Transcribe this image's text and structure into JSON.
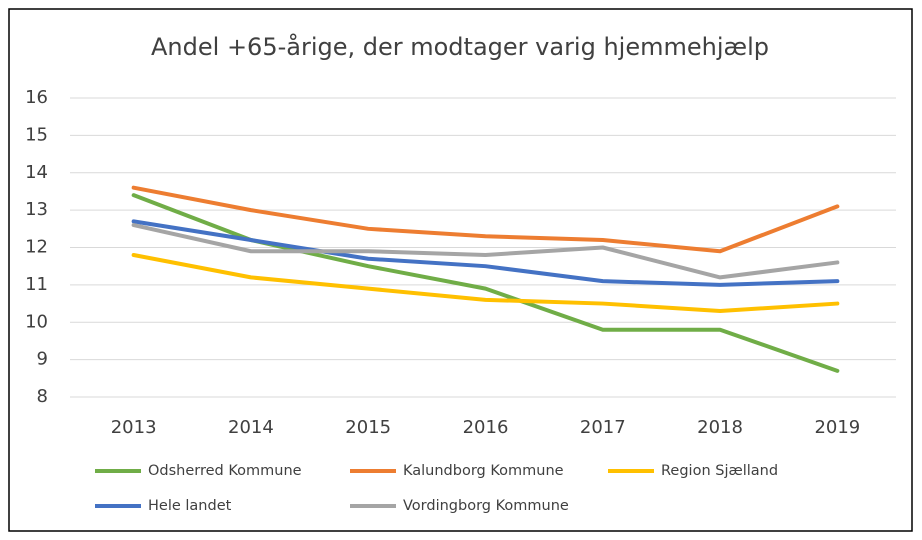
{
  "chart_data": {
    "type": "line",
    "title": "Andel +65-årige, der modtager varig hjemmehjælp",
    "categories": [
      "2013",
      "2014",
      "2015",
      "2016",
      "2017",
      "2018",
      "2019"
    ],
    "series": [
      {
        "name": "Odsherred Kommune",
        "color": "#70ad47",
        "values": [
          13.4,
          12.2,
          11.5,
          10.9,
          9.8,
          9.8,
          8.7
        ]
      },
      {
        "name": "Kalundborg Kommune",
        "color": "#ed7d31",
        "values": [
          13.6,
          13.0,
          12.5,
          12.3,
          12.2,
          11.9,
          13.1
        ]
      },
      {
        "name": "Region Sjælland",
        "color": "#ffc000",
        "values": [
          11.8,
          11.2,
          10.9,
          10.6,
          10.5,
          10.3,
          10.5
        ]
      },
      {
        "name": "Hele landet",
        "color": "#4472c4",
        "values": [
          12.7,
          12.2,
          11.7,
          11.5,
          11.1,
          11.0,
          11.1
        ]
      },
      {
        "name": "Vordingborg Kommune",
        "color": "#a5a5a5",
        "values": [
          12.6,
          11.9,
          11.9,
          11.8,
          12.0,
          11.2,
          11.6
        ]
      }
    ],
    "ylim": [
      8,
      16
    ],
    "yticks": [
      8,
      9,
      10,
      11,
      12,
      13,
      14,
      15,
      16
    ],
    "grid": true,
    "legend": "bottom"
  }
}
